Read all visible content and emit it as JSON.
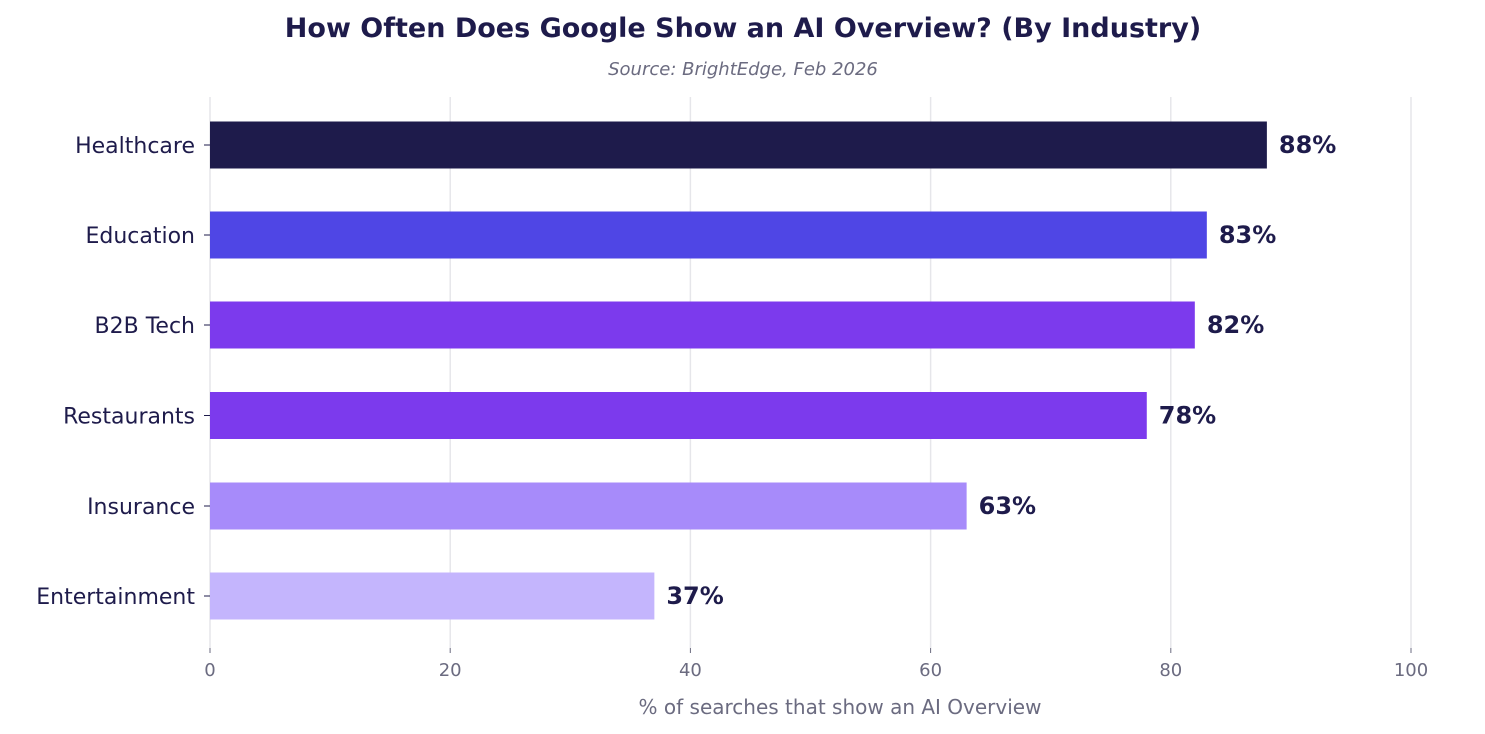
{
  "chart_data": {
    "type": "bar",
    "orientation": "horizontal",
    "title": "How Often Does Google Show an AI Overview? (By Industry)",
    "subtitle": "Source: BrightEdge, Feb 2026",
    "xlabel": "% of searches that show an AI Overview",
    "ylabel": "",
    "xlim": [
      0,
      100
    ],
    "xticks": [
      0,
      20,
      40,
      60,
      80,
      100
    ],
    "grid": "vertical",
    "categories": [
      "Healthcare",
      "Education",
      "B2B Tech",
      "Restaurants",
      "Insurance",
      "Entertainment"
    ],
    "values": [
      88,
      83,
      82,
      78,
      63,
      37
    ],
    "data_labels": [
      "88%",
      "83%",
      "82%",
      "78%",
      "63%",
      "37%"
    ],
    "colors": [
      "#1e1b4b",
      "#4f46e5",
      "#7c3aed",
      "#7c3aed",
      "#a78bfa",
      "#c4b5fd"
    ]
  }
}
